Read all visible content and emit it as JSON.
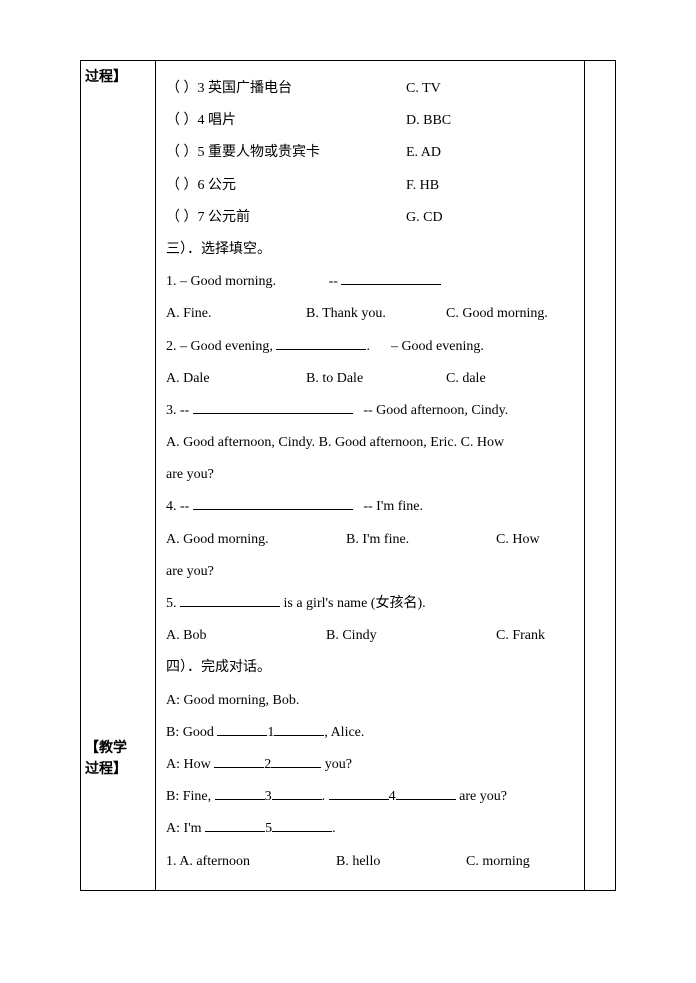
{
  "labels": {
    "left_top": "过程】",
    "left_bottom_1": "【教学",
    "left_bottom_2": "过程】"
  },
  "section2_matching": [
    {
      "num": "3",
      "text": "英国广播电台",
      "choice": "C. TV"
    },
    {
      "num": "4",
      "text": "唱片",
      "choice": "D. BBC"
    },
    {
      "num": "5",
      "text": "重要人物或贵宾卡",
      "choice": "E. AD"
    },
    {
      "num": "6",
      "text": "公元",
      "choice": "F. HB"
    },
    {
      "num": "7",
      "text": "公元前",
      "choice": "G. CD"
    }
  ],
  "section3": {
    "title": "三）．选择填空。",
    "q1": {
      "stem_a": "1. – Good morning.",
      "stem_b": "-- ",
      "opts": {
        "a": "A. Fine.",
        "b": "B. Thank you.",
        "c": "C. Good morning."
      }
    },
    "q2": {
      "stem_a": "2. – Good evening, ",
      "stem_b": ".      – Good evening.",
      "opts": {
        "a": "A. Dale",
        "b": "B. to Dale",
        "c": "C. dale"
      }
    },
    "q3": {
      "stem_a": "3. -- ",
      "stem_b": "   -- Good afternoon, Cindy.",
      "opts_line1": "A. Good afternoon, Cindy. B. Good afternoon, Eric. C. How",
      "opts_line2": "are you?"
    },
    "q4": {
      "stem_a": "4. -- ",
      "stem_b": "   -- I'm fine.",
      "opts_line1_a": "A. Good morning.",
      "opts_line1_b": "B. I'm fine.",
      "opts_line1_c": "C.    How",
      "opts_line2": "are you?"
    },
    "q5": {
      "stem_a": "5. ",
      "stem_b": " is a girl's name (女孩名).",
      "opts": {
        "a": "A. Bob",
        "b": "B. Cindy",
        "c": "C. Frank"
      }
    }
  },
  "section4": {
    "title": "四）．完成对话。",
    "lines": {
      "l1": "A: Good morning, Bob.",
      "l2_a": "B: Good ",
      "l2_b": "1",
      "l2_c": ", Alice.",
      "l3_a": "A: How ",
      "l3_b": "2",
      "l3_c": " you?",
      "l4_a": "B: Fine, ",
      "l4_b": "3",
      "l4_c": ". ",
      "l4_d": "4",
      "l4_e": " are you?",
      "l5_a": "A: I'm ",
      "l5_b": "5",
      "l5_c": "."
    },
    "opts1": {
      "a": "1. A. afternoon",
      "b": "B. hello",
      "c": "C. morning"
    }
  }
}
